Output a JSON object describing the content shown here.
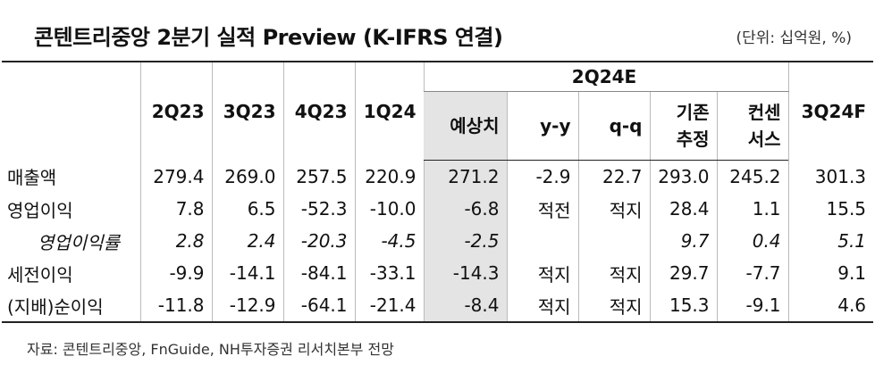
{
  "header": {
    "title": "콘텐트리중앙 2분기 실적 Preview (K-IFRS 연결)",
    "unit": "(단위: 십억원, %)"
  },
  "table": {
    "columns": [
      "2Q23",
      "3Q23",
      "4Q23",
      "1Q24"
    ],
    "group": "2Q24E",
    "group_columns": [
      "예상치",
      "y-y",
      "q-q",
      "기존\n추정",
      "컨센\n서스"
    ],
    "last_column": "3Q24F",
    "rows": [
      [
        "매출액",
        "279.4",
        "269.0",
        "257.5",
        "220.9",
        "271.2",
        "-2.9",
        "22.7",
        "293.0",
        "245.2",
        "301.3"
      ],
      [
        "영업이익",
        "7.8",
        "6.5",
        "-52.3",
        "-10.0",
        "-6.8",
        "적전",
        "적지",
        "28.4",
        "1.1",
        "15.5"
      ],
      [
        "영업이익률",
        "2.8",
        "2.4",
        "-20.3",
        "-4.5",
        "-2.5",
        null,
        null,
        "9.7",
        "0.4",
        "5.1"
      ],
      [
        "세전이익",
        "-9.9",
        "-14.1",
        "-84.1",
        "-33.1",
        "-14.3",
        "적지",
        "적지",
        "29.7",
        "-7.7",
        "9.1"
      ],
      [
        "(지배)순이익",
        "-11.8",
        "-12.9",
        "-64.1",
        "-21.4",
        "-8.4",
        "적지",
        "적지",
        "15.3",
        "-9.1",
        "4.6"
      ]
    ]
  },
  "source": "자료: 콘텐트리중앙, FnGuide, NH투자증권 리서치본부 전망"
}
